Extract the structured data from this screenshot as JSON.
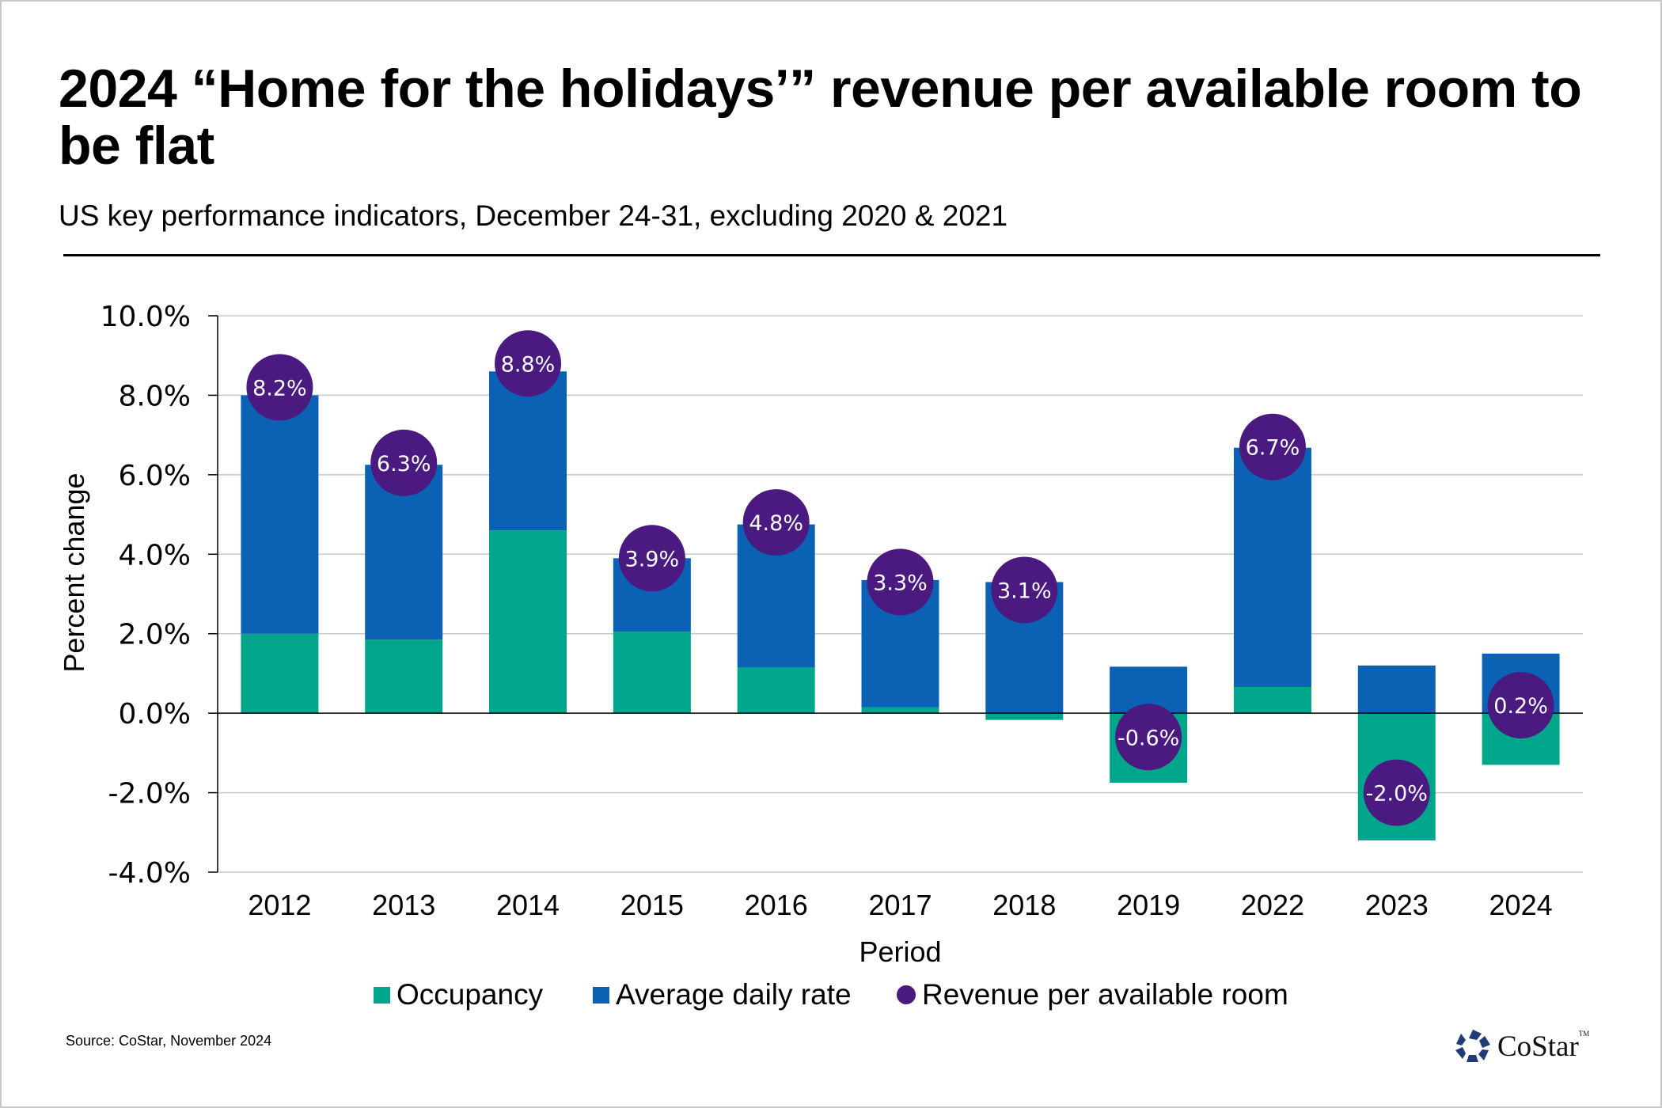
{
  "header": {
    "title": "2024 “Home for the holidays’” revenue per available room to be flat",
    "subtitle": "US key performance indicators, December 24-31, excluding 2020 & 2021"
  },
  "footer": {
    "source": "Source: CoStar, November 2024",
    "logo_text": "CoStar",
    "logo_tm": "TM",
    "logo_icon": "costar-star-icon"
  },
  "colors": {
    "occupancy": "#00a68c",
    "adr": "#0b62b4",
    "revpar": "#4a1a80",
    "grid": "#c8c8c8",
    "axis": "#000000"
  },
  "legend": [
    {
      "label": "Occupancy",
      "marker": "square",
      "color": "#00a68c"
    },
    {
      "label": "Average daily rate",
      "marker": "square",
      "color": "#0b62b4"
    },
    {
      "label": "Revenue per available room",
      "marker": "circle",
      "color": "#4a1a80"
    }
  ],
  "chart_data": {
    "type": "bar",
    "stacked": true,
    "title": "2024 “Home for the holidays’” revenue per available room to be flat",
    "subtitle": "US key performance indicators, December 24-31, excluding 2020 & 2021",
    "xlabel": "Period",
    "ylabel": "Percent change",
    "ylim": [
      -4.0,
      10.0
    ],
    "yticks": [
      10.0,
      8.0,
      6.0,
      4.0,
      2.0,
      0.0,
      -2.0,
      -4.0
    ],
    "ytick_labels": [
      "10.0%",
      "8.0%",
      "6.0%",
      "4.0%",
      "2.0%",
      "0.0%",
      "-2.0%",
      "-4.0%"
    ],
    "grid": true,
    "legend_position": "bottom-center",
    "categories": [
      "2012",
      "2013",
      "2014",
      "2015",
      "2016",
      "2017",
      "2018",
      "2019",
      "2022",
      "2023",
      "2024"
    ],
    "series": [
      {
        "name": "Occupancy",
        "kind": "bar",
        "values": [
          2.0,
          1.85,
          4.6,
          2.05,
          1.15,
          0.15,
          -0.17,
          -1.75,
          0.66,
          -3.2,
          -1.3
        ]
      },
      {
        "name": "Average daily rate",
        "kind": "bar",
        "values": [
          6.0,
          4.4,
          4.0,
          1.85,
          3.6,
          3.2,
          3.3,
          1.17,
          6.02,
          1.2,
          1.5
        ]
      },
      {
        "name": "Revenue per available room",
        "kind": "marker",
        "values": [
          8.2,
          6.3,
          8.8,
          3.9,
          4.8,
          3.3,
          3.1,
          -0.6,
          6.7,
          -2.0,
          0.2
        ],
        "labels": [
          "8.2%",
          "6.3%",
          "8.8%",
          "3.9%",
          "4.8%",
          "3.3%",
          "3.1%",
          "-0.6%",
          "6.7%",
          "-2.0%",
          "0.2%"
        ]
      }
    ]
  }
}
